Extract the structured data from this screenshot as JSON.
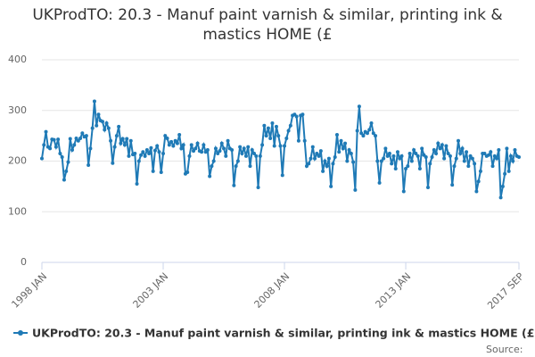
{
  "chart_data": {
    "type": "line",
    "title": "UKProdTO: 20.3 - Manuf paint varnish & similar, printing ink & mastics HOME (£",
    "source": "Source:",
    "categories": [
      "1998 JAN",
      null,
      null,
      null,
      null,
      null,
      null,
      null,
      null,
      null,
      null,
      null,
      null,
      null,
      null,
      null,
      null,
      null,
      null,
      null,
      null,
      null,
      null,
      null,
      null,
      null,
      null,
      null,
      null,
      null,
      null,
      null,
      null,
      null,
      null,
      null,
      null,
      null,
      null,
      null,
      null,
      null,
      null,
      null,
      null,
      null,
      null,
      null,
      null,
      null,
      null,
      null,
      null,
      null,
      null,
      null,
      null,
      null,
      null,
      null,
      "2003 JAN",
      null,
      null,
      null,
      null,
      null,
      null,
      null,
      null,
      null,
      null,
      null,
      null,
      null,
      null,
      null,
      null,
      null,
      null,
      null,
      null,
      null,
      null,
      null,
      null,
      null,
      null,
      null,
      null,
      null,
      null,
      null,
      null,
      null,
      null,
      null,
      null,
      null,
      null,
      null,
      null,
      null,
      null,
      null,
      null,
      null,
      null,
      null,
      null,
      null,
      null,
      null,
      null,
      null,
      null,
      null,
      null,
      null,
      null,
      null,
      "2008 JAN",
      null,
      null,
      null,
      null,
      null,
      null,
      null,
      null,
      null,
      null,
      null,
      null,
      null,
      null,
      null,
      null,
      null,
      null,
      null,
      null,
      null,
      null,
      null,
      null,
      null,
      null,
      null,
      null,
      null,
      null,
      null,
      null,
      null,
      null,
      null,
      null,
      null,
      null,
      null,
      null,
      null,
      null,
      null,
      null,
      null,
      null,
      null,
      null,
      null,
      null,
      null,
      null,
      null,
      null,
      null,
      null,
      null,
      null,
      null,
      "2013 JAN",
      null,
      null,
      null,
      null,
      null,
      null,
      null,
      null,
      null,
      null,
      null,
      null,
      null,
      null,
      null,
      null,
      null,
      null,
      null,
      null,
      null,
      null,
      null,
      null,
      null,
      null,
      null,
      null,
      null,
      null,
      null,
      null,
      null,
      null,
      null,
      null,
      null,
      null,
      null,
      null,
      null,
      null,
      null,
      null,
      null,
      null,
      null,
      null,
      null,
      null,
      null,
      null,
      null,
      null,
      null,
      "2017 SEP"
    ],
    "series": [
      {
        "name": "UKProdTO: 20.3 - Manuf paint varnish & similar, printing ink & mastics HOME (£",
        "color": "#1f7ab6",
        "values": [
          205,
          232,
          258,
          228,
          225,
          243,
          242,
          228,
          243,
          215,
          208,
          163,
          180,
          198,
          244,
          222,
          232,
          245,
          240,
          245,
          255,
          248,
          250,
          192,
          225,
          265,
          318,
          270,
          292,
          280,
          278,
          262,
          275,
          265,
          240,
          196,
          228,
          250,
          268,
          235,
          244,
          232,
          244,
          210,
          240,
          213,
          215,
          155,
          200,
          212,
          218,
          210,
          222,
          215,
          226,
          180,
          221,
          230,
          218,
          178,
          215,
          250,
          245,
          232,
          238,
          230,
          240,
          235,
          252,
          225,
          232,
          175,
          178,
          210,
          232,
          220,
          225,
          235,
          220,
          218,
          232,
          218,
          222,
          170,
          190,
          200,
          225,
          215,
          220,
          235,
          225,
          210,
          240,
          225,
          222,
          152,
          190,
          200,
          228,
          215,
          225,
          210,
          228,
          190,
          222,
          215,
          210,
          148,
          210,
          232,
          270,
          250,
          265,
          245,
          275,
          230,
          268,
          250,
          230,
          172,
          230,
          245,
          260,
          270,
          290,
          292,
          288,
          240,
          290,
          292,
          240,
          190,
          195,
          205,
          228,
          205,
          215,
          210,
          220,
          180,
          200,
          190,
          205,
          150,
          195,
          208,
          252,
          218,
          240,
          225,
          235,
          200,
          222,
          215,
          198,
          143,
          260,
          308,
          255,
          250,
          258,
          255,
          262,
          275,
          255,
          250,
          200,
          157,
          200,
          205,
          225,
          210,
          215,
          195,
          210,
          185,
          218,
          205,
          210,
          140,
          185,
          190,
          215,
          200,
          222,
          215,
          210,
          185,
          225,
          212,
          208,
          148,
          195,
          208,
          222,
          215,
          235,
          225,
          232,
          205,
          230,
          215,
          210,
          153,
          190,
          205,
          240,
          215,
          225,
          200,
          218,
          190,
          210,
          205,
          195,
          140,
          160,
          180,
          215,
          215,
          210,
          212,
          218,
          190,
          210,
          205,
          222,
          128,
          150,
          175,
          225,
          180,
          210,
          200,
          222,
          210,
          208
        ]
      }
    ],
    "ylim": [
      0,
      400
    ],
    "yticks": [
      0,
      100,
      200,
      300,
      400
    ],
    "grid": true
  }
}
